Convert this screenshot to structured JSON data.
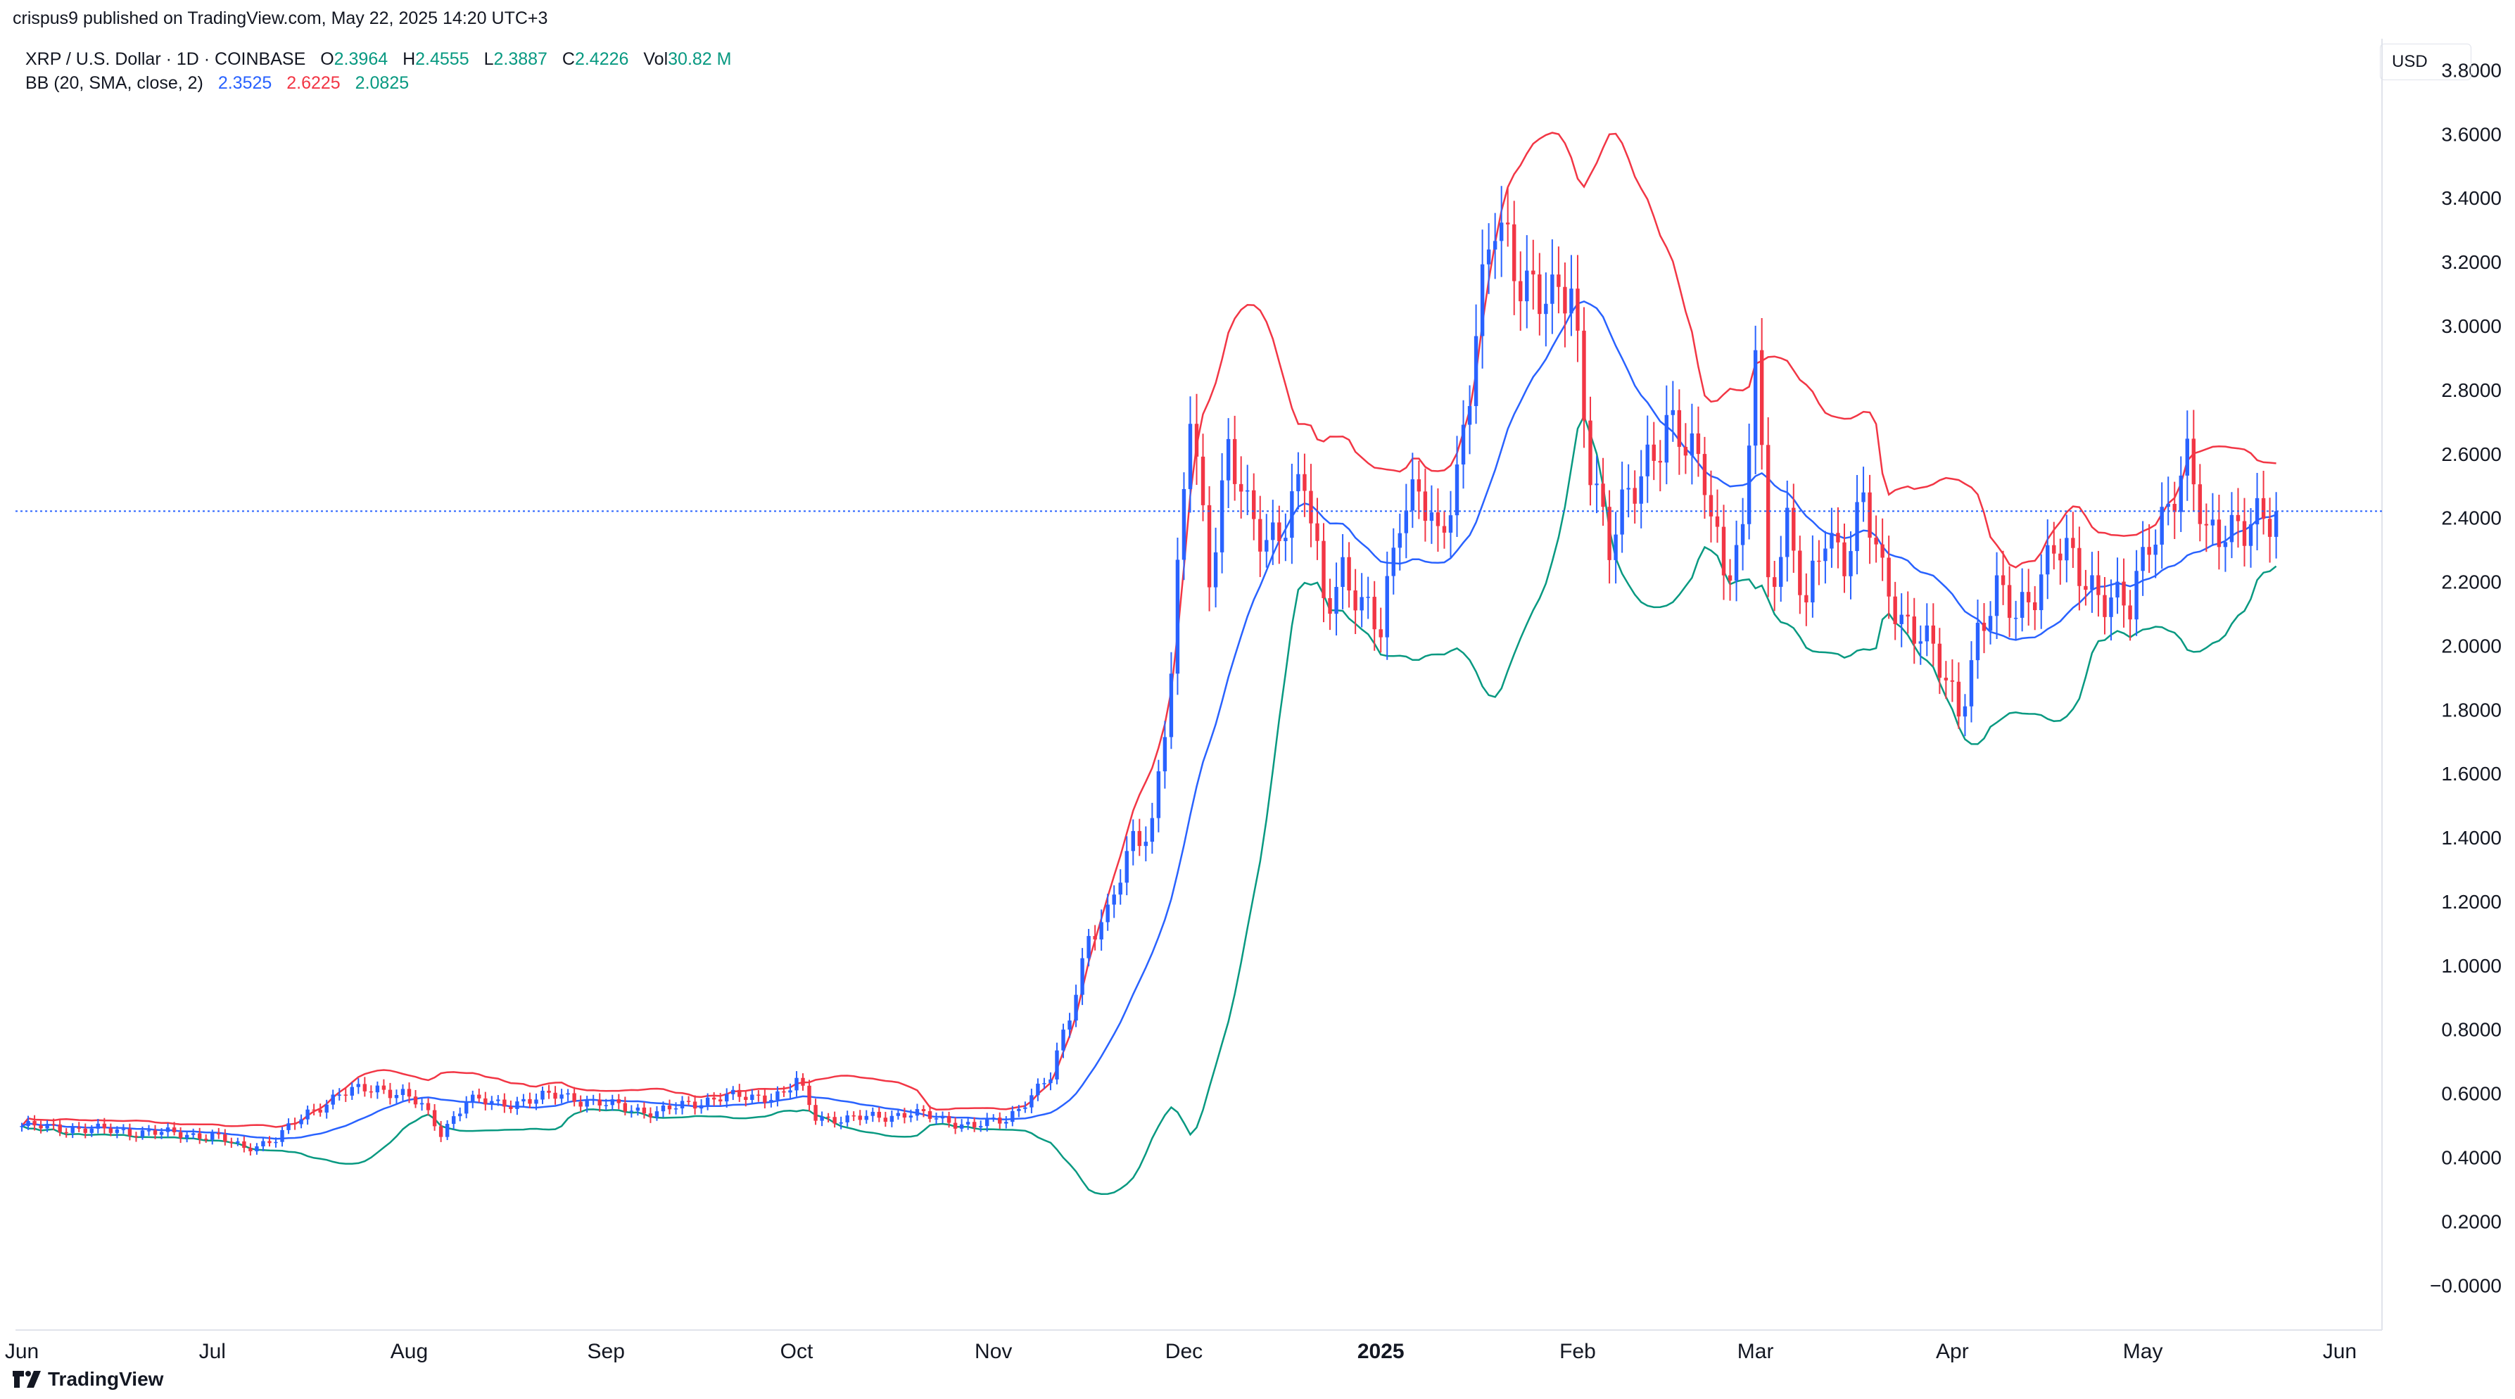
{
  "header": {
    "published": "crispus9 published on TradingView.com, May 22, 2025 14:20 UTC+3"
  },
  "legend": {
    "symbol": "XRP / U.S. Dollar · 1D · COINBASE",
    "o_label": "O",
    "o_value": "2.3964",
    "h_label": "H",
    "h_value": "2.4555",
    "l_label": "L",
    "l_value": "2.3887",
    "c_label": "C",
    "c_value": "2.4226",
    "vol_label": "Vol",
    "vol_value": "30.82 M",
    "bb_label": "BB (20, SMA, close, 2)",
    "bb_basis": "2.3525",
    "bb_upper": "2.6225",
    "bb_lower": "2.0825"
  },
  "currency": "USD",
  "footer": {
    "brand": "TradingView"
  },
  "colors": {
    "up": "#2962ff",
    "down": "#f23645",
    "bb_basis": "#2962ff",
    "bb_upper": "#f23645",
    "bb_lower": "#089981",
    "last_price_line": "#2962ff"
  },
  "chart_data": {
    "type": "candlestick",
    "ylim": [
      -0.05,
      3.9
    ],
    "last_price": 2.4226,
    "y_ticks": [
      "3.8000",
      "3.6000",
      "3.4000",
      "3.2000",
      "3.0000",
      "2.8000",
      "2.6000",
      "2.4000",
      "2.2000",
      "2.0000",
      "1.8000",
      "1.6000",
      "1.4000",
      "1.2000",
      "1.0000",
      "0.8000",
      "0.6000",
      "0.4000",
      "0.2000",
      "−0.0000"
    ],
    "x_ticks": [
      {
        "label": "Jun",
        "day": 0,
        "bold": false
      },
      {
        "label": "Jul",
        "day": 30,
        "bold": false
      },
      {
        "label": "Aug",
        "day": 61,
        "bold": false
      },
      {
        "label": "Sep",
        "day": 92,
        "bold": false
      },
      {
        "label": "Oct",
        "day": 122,
        "bold": false
      },
      {
        "label": "Nov",
        "day": 153,
        "bold": false
      },
      {
        "label": "Dec",
        "day": 183,
        "bold": false
      },
      {
        "label": "2025",
        "day": 214,
        "bold": true
      },
      {
        "label": "Feb",
        "day": 245,
        "bold": false
      },
      {
        "label": "Mar",
        "day": 273,
        "bold": false
      },
      {
        "label": "Apr",
        "day": 304,
        "bold": false
      },
      {
        "label": "May",
        "day": 334,
        "bold": false
      },
      {
        "label": "Jun",
        "day": 365,
        "bold": false
      }
    ],
    "x_range": [
      -1,
      370
    ],
    "last_day": 355,
    "close_anchors": [
      [
        0,
        0.5
      ],
      [
        20,
        0.48
      ],
      [
        30,
        0.47
      ],
      [
        35,
        0.43
      ],
      [
        40,
        0.46
      ],
      [
        45,
        0.54
      ],
      [
        50,
        0.6
      ],
      [
        56,
        0.62
      ],
      [
        60,
        0.6
      ],
      [
        63,
        0.56
      ],
      [
        66,
        0.48
      ],
      [
        70,
        0.58
      ],
      [
        75,
        0.57
      ],
      [
        80,
        0.58
      ],
      [
        85,
        0.6
      ],
      [
        90,
        0.57
      ],
      [
        95,
        0.56
      ],
      [
        100,
        0.54
      ],
      [
        105,
        0.57
      ],
      [
        110,
        0.59
      ],
      [
        115,
        0.59
      ],
      [
        120,
        0.6
      ],
      [
        122,
        0.64
      ],
      [
        125,
        0.53
      ],
      [
        130,
        0.52
      ],
      [
        140,
        0.54
      ],
      [
        145,
        0.52
      ],
      [
        150,
        0.5
      ],
      [
        155,
        0.52
      ],
      [
        158,
        0.58
      ],
      [
        162,
        0.65
      ],
      [
        165,
        0.85
      ],
      [
        168,
        1.1
      ],
      [
        171,
        1.15
      ],
      [
        175,
        1.4
      ],
      [
        178,
        1.45
      ],
      [
        181,
        1.9
      ],
      [
        184,
        2.75
      ],
      [
        187,
        2.25
      ],
      [
        190,
        2.6
      ],
      [
        193,
        2.4
      ],
      [
        196,
        2.35
      ],
      [
        199,
        2.4
      ],
      [
        202,
        2.5
      ],
      [
        205,
        2.15
      ],
      [
        208,
        2.25
      ],
      [
        211,
        2.1
      ],
      [
        214,
        2.05
      ],
      [
        217,
        2.45
      ],
      [
        220,
        2.48
      ],
      [
        223,
        2.3
      ],
      [
        226,
        2.55
      ],
      [
        229,
        3.0
      ],
      [
        232,
        3.3
      ],
      [
        235,
        3.2
      ],
      [
        238,
        3.15
      ],
      [
        241,
        3.05
      ],
      [
        244,
        3.1
      ],
      [
        247,
        2.6
      ],
      [
        250,
        2.3
      ],
      [
        253,
        2.45
      ],
      [
        256,
        2.6
      ],
      [
        259,
        2.7
      ],
      [
        262,
        2.6
      ],
      [
        265,
        2.55
      ],
      [
        268,
        2.25
      ],
      [
        271,
        2.3
      ],
      [
        273,
        2.95
      ],
      [
        275,
        2.2
      ],
      [
        278,
        2.4
      ],
      [
        281,
        2.1
      ],
      [
        284,
        2.35
      ],
      [
        287,
        2.3
      ],
      [
        290,
        2.45
      ],
      [
        293,
        2.2
      ],
      [
        296,
        2.1
      ],
      [
        299,
        2.05
      ],
      [
        302,
        1.92
      ],
      [
        305,
        1.8
      ],
      [
        308,
        2.05
      ],
      [
        311,
        2.15
      ],
      [
        314,
        2.1
      ],
      [
        317,
        2.2
      ],
      [
        320,
        2.3
      ],
      [
        323,
        2.25
      ],
      [
        326,
        2.2
      ],
      [
        329,
        2.15
      ],
      [
        332,
        2.1
      ],
      [
        335,
        2.35
      ],
      [
        338,
        2.45
      ],
      [
        341,
        2.55
      ],
      [
        344,
        2.35
      ],
      [
        347,
        2.4
      ],
      [
        350,
        2.35
      ],
      [
        353,
        2.38
      ],
      [
        355,
        2.42
      ]
    ],
    "series": [
      {
        "name": "BB basis",
        "last": 2.3525
      },
      {
        "name": "BB upper",
        "last": 2.6225
      },
      {
        "name": "BB lower",
        "last": 2.0825
      }
    ]
  }
}
